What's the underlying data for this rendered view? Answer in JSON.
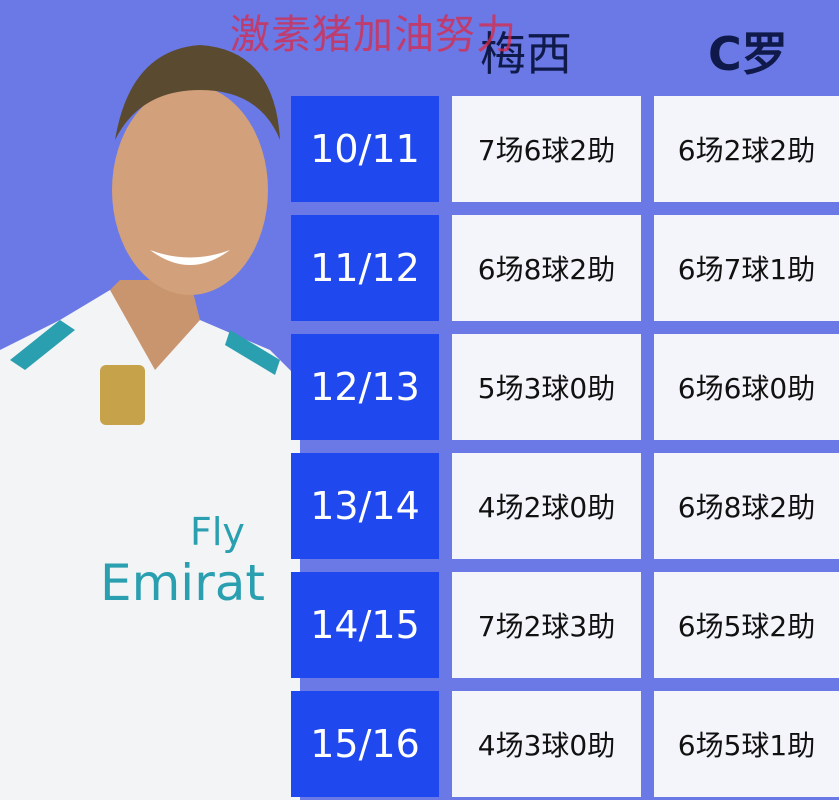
{
  "watermark": "激素猪加油努力",
  "headers": {
    "messi": "梅西",
    "ronaldo": "C罗"
  },
  "colors": {
    "background": "#6a79e6",
    "season_cell": "#1f48ee",
    "stat_cell": "#f4f5fa"
  },
  "rows": [
    {
      "season": "10/11",
      "messi": "7场6球2助",
      "ronaldo": "6场2球2助"
    },
    {
      "season": "11/12",
      "messi": "6场8球2助",
      "ronaldo": "6场7球1助"
    },
    {
      "season": "12/13",
      "messi": "5场3球0助",
      "ronaldo": "6场6球0助"
    },
    {
      "season": "13/14",
      "messi": "4场2球0助",
      "ronaldo": "6场8球2助"
    },
    {
      "season": "14/15",
      "messi": "7场2球3助",
      "ronaldo": "6场5球2助"
    },
    {
      "season": "15/16",
      "messi": "4场3球0助",
      "ronaldo": "6场5球1助"
    }
  ]
}
